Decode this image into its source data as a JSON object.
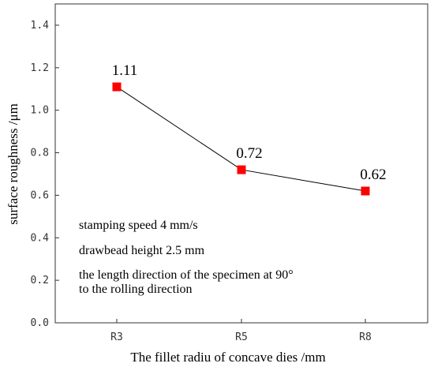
{
  "chart_data": {
    "type": "line",
    "categories": [
      "R3",
      "R5",
      "R8"
    ],
    "series": [
      {
        "values": [
          1.11,
          0.72,
          0.62
        ],
        "color": "#ff0000",
        "line_color": "#000000"
      }
    ],
    "data_labels": [
      "1.11",
      "0.72",
      "0.62"
    ],
    "xlabel": "The fillet radiu of concave dies /mm",
    "ylabel": "surface roughness /μm",
    "ylim": [
      0,
      1.5
    ],
    "yticks": [
      0.0,
      0.2,
      0.4,
      0.6,
      0.8,
      1.0,
      1.2,
      1.4
    ],
    "ytick_labels": [
      "0.0",
      "0.2",
      "0.4",
      "0.6",
      "0.8",
      "1.0",
      "1.2",
      "1.4"
    ],
    "grid": false,
    "annotations": [
      "stamping speed  4 mm/s",
      "drawbead height  2.5 mm",
      "the length direction of the specimen at 90°",
      "to the rolling direction"
    ]
  }
}
